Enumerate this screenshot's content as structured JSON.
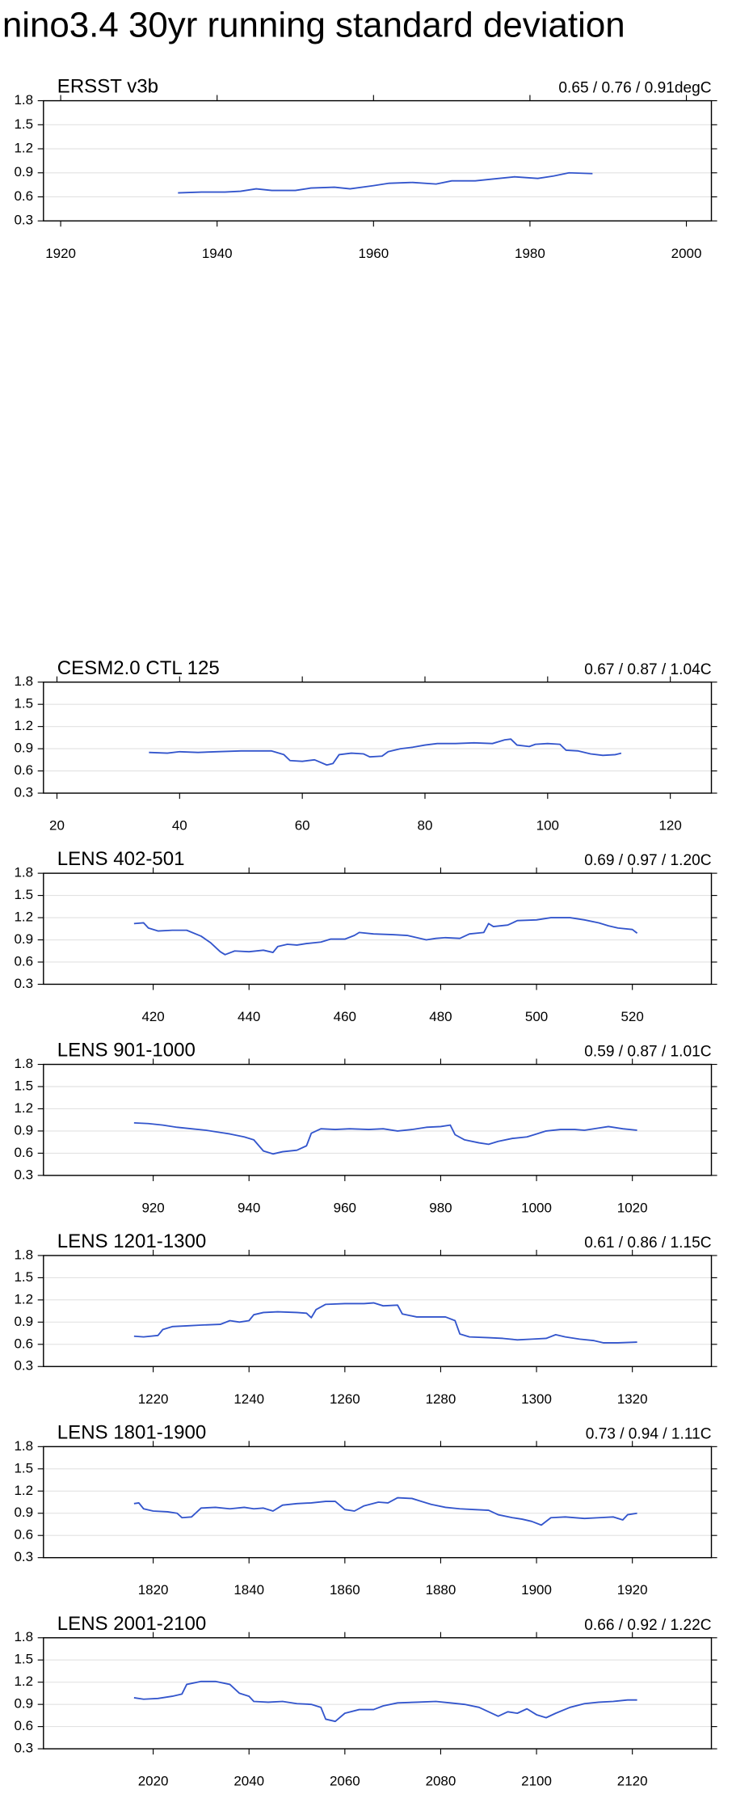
{
  "title": "nino3.4 30yr running standard deviation",
  "chart_data": [
    {
      "type": "line",
      "title": "ERSST v3b",
      "subtitle": "0.65 / 0.76 / 0.91degC",
      "color": "#3355cc",
      "grid": true,
      "x": [
        1935,
        1938,
        1941,
        1943,
        1945,
        1947,
        1950,
        1952,
        1955,
        1957,
        1960,
        1962,
        1965,
        1968,
        1970,
        1973,
        1975,
        1978,
        1981,
        1983,
        1985,
        1988
      ],
      "values": [
        0.65,
        0.66,
        0.66,
        0.67,
        0.7,
        0.68,
        0.68,
        0.71,
        0.72,
        0.7,
        0.74,
        0.77,
        0.78,
        0.76,
        0.8,
        0.8,
        0.82,
        0.85,
        0.83,
        0.86,
        0.9,
        0.89
      ],
      "xlim": [
        1917.8,
        2003.2
      ],
      "xticks": [
        1920,
        1940,
        1960,
        1980,
        2000
      ],
      "ylim": [
        0.3,
        1.8
      ],
      "yticks": [
        0.3,
        0.6,
        0.9,
        1.2,
        1.5,
        1.8
      ]
    },
    {
      "type": "line",
      "title": "CESM2.0 CTL 125",
      "subtitle": "0.67 / 0.87 / 1.04C",
      "color": "#3355cc",
      "grid": true,
      "x": [
        35,
        38,
        40,
        43,
        46,
        50,
        55,
        57,
        58,
        60,
        62,
        64,
        65,
        66,
        68,
        70,
        71,
        73,
        74,
        76,
        78,
        80,
        82,
        85,
        88,
        91,
        93,
        94,
        95,
        97,
        98,
        100,
        102,
        103,
        105,
        107,
        109,
        111,
        112
      ],
      "values": [
        0.85,
        0.84,
        0.86,
        0.85,
        0.86,
        0.87,
        0.87,
        0.82,
        0.74,
        0.73,
        0.75,
        0.68,
        0.7,
        0.82,
        0.84,
        0.83,
        0.79,
        0.8,
        0.86,
        0.9,
        0.92,
        0.95,
        0.97,
        0.97,
        0.98,
        0.97,
        1.02,
        1.03,
        0.95,
        0.93,
        0.96,
        0.97,
        0.96,
        0.88,
        0.87,
        0.83,
        0.81,
        0.82,
        0.84
      ],
      "xlim": [
        17.8,
        126.7
      ],
      "xticks": [
        20,
        40,
        60,
        80,
        100,
        120
      ],
      "ylim": [
        0.3,
        1.8
      ],
      "yticks": [
        0.3,
        0.6,
        0.9,
        1.2,
        1.5,
        1.8
      ]
    },
    {
      "type": "line",
      "title": "LENS 402-501",
      "subtitle": "0.69 / 0.97 / 1.20C",
      "color": "#3355cc",
      "grid": true,
      "x": [
        416,
        418,
        419,
        421,
        424,
        427,
        430,
        432,
        434,
        435,
        437,
        440,
        443,
        445,
        446,
        448,
        450,
        452,
        455,
        457,
        460,
        462,
        463,
        466,
        470,
        473,
        475,
        477,
        479,
        481,
        484,
        486,
        489,
        490,
        491,
        494,
        496,
        500,
        503,
        507,
        510,
        513,
        515,
        517,
        520,
        521
      ],
      "values": [
        1.12,
        1.13,
        1.06,
        1.02,
        1.03,
        1.03,
        0.95,
        0.86,
        0.74,
        0.7,
        0.75,
        0.74,
        0.76,
        0.73,
        0.81,
        0.84,
        0.83,
        0.85,
        0.87,
        0.91,
        0.91,
        0.96,
        1.0,
        0.98,
        0.97,
        0.96,
        0.93,
        0.9,
        0.92,
        0.93,
        0.92,
        0.98,
        1.0,
        1.12,
        1.08,
        1.1,
        1.16,
        1.17,
        1.2,
        1.2,
        1.17,
        1.13,
        1.09,
        1.06,
        1.04,
        0.99
      ],
      "xlim": [
        397.1,
        536.5
      ],
      "xticks": [
        420,
        440,
        460,
        480,
        500,
        520
      ],
      "ylim": [
        0.3,
        1.8
      ],
      "yticks": [
        0.3,
        0.6,
        0.9,
        1.2,
        1.5,
        1.8
      ]
    },
    {
      "type": "line",
      "title": "LENS 901-1000",
      "subtitle": "0.59 / 0.87 / 1.01C",
      "color": "#3355cc",
      "grid": true,
      "x": [
        916,
        919,
        922,
        925,
        928,
        931,
        934,
        936,
        939,
        941,
        943,
        945,
        947,
        950,
        952,
        953,
        955,
        958,
        961,
        965,
        968,
        971,
        974,
        977,
        980,
        982,
        983,
        985,
        988,
        990,
        992,
        995,
        998,
        1000,
        1002,
        1005,
        1008,
        1010,
        1013,
        1015,
        1018,
        1021
      ],
      "values": [
        1.01,
        1.0,
        0.98,
        0.95,
        0.93,
        0.91,
        0.88,
        0.86,
        0.82,
        0.78,
        0.63,
        0.59,
        0.62,
        0.64,
        0.7,
        0.87,
        0.93,
        0.92,
        0.93,
        0.92,
        0.93,
        0.9,
        0.92,
        0.95,
        0.96,
        0.98,
        0.85,
        0.78,
        0.74,
        0.72,
        0.76,
        0.8,
        0.82,
        0.86,
        0.9,
        0.92,
        0.92,
        0.91,
        0.94,
        0.96,
        0.93,
        0.91
      ],
      "xlim": [
        897.1,
        1036.5
      ],
      "xticks": [
        920,
        940,
        960,
        980,
        1000,
        1020
      ],
      "ylim": [
        0.3,
        1.8
      ],
      "yticks": [
        0.3,
        0.6,
        0.9,
        1.2,
        1.5,
        1.8
      ]
    },
    {
      "type": "line",
      "title": "LENS 1201-1300",
      "subtitle": "0.61 / 0.86 / 1.15C",
      "color": "#3355cc",
      "grid": true,
      "x": [
        1216,
        1218,
        1221,
        1222,
        1224,
        1227,
        1230,
        1234,
        1236,
        1238,
        1240,
        1241,
        1243,
        1246,
        1250,
        1252,
        1253,
        1254,
        1256,
        1260,
        1264,
        1266,
        1268,
        1271,
        1272,
        1275,
        1278,
        1281,
        1283,
        1284,
        1286,
        1290,
        1293,
        1296,
        1299,
        1302,
        1304,
        1306,
        1309,
        1312,
        1314,
        1317,
        1321
      ],
      "values": [
        0.71,
        0.7,
        0.72,
        0.8,
        0.84,
        0.85,
        0.86,
        0.87,
        0.92,
        0.9,
        0.92,
        1.0,
        1.03,
        1.04,
        1.03,
        1.02,
        0.96,
        1.07,
        1.14,
        1.15,
        1.15,
        1.16,
        1.12,
        1.13,
        1.01,
        0.97,
        0.97,
        0.97,
        0.92,
        0.74,
        0.7,
        0.69,
        0.68,
        0.66,
        0.67,
        0.68,
        0.73,
        0.7,
        0.67,
        0.65,
        0.62,
        0.62,
        0.63
      ],
      "xlim": [
        1197.1,
        1336.5
      ],
      "xticks": [
        1220,
        1240,
        1260,
        1280,
        1300,
        1320
      ],
      "ylim": [
        0.3,
        1.8
      ],
      "yticks": [
        0.3,
        0.6,
        0.9,
        1.2,
        1.5,
        1.8
      ]
    },
    {
      "type": "line",
      "title": "LENS 1801-1900",
      "subtitle": "0.73 / 0.94 / 1.11C",
      "color": "#3355cc",
      "grid": true,
      "x": [
        1816,
        1817,
        1818,
        1820,
        1823,
        1825,
        1826,
        1828,
        1830,
        1833,
        1836,
        1839,
        1841,
        1843,
        1845,
        1847,
        1850,
        1853,
        1856,
        1858,
        1860,
        1862,
        1864,
        1867,
        1869,
        1871,
        1874,
        1876,
        1878,
        1881,
        1884,
        1887,
        1890,
        1892,
        1895,
        1897,
        1899,
        1901,
        1903,
        1906,
        1910,
        1913,
        1916,
        1918,
        1919,
        1921
      ],
      "values": [
        1.03,
        1.04,
        0.96,
        0.93,
        0.92,
        0.9,
        0.84,
        0.85,
        0.97,
        0.98,
        0.96,
        0.98,
        0.96,
        0.97,
        0.93,
        1.01,
        1.03,
        1.04,
        1.06,
        1.06,
        0.95,
        0.93,
        1.0,
        1.05,
        1.04,
        1.11,
        1.1,
        1.06,
        1.02,
        0.98,
        0.96,
        0.95,
        0.94,
        0.88,
        0.84,
        0.82,
        0.79,
        0.74,
        0.84,
        0.85,
        0.83,
        0.84,
        0.85,
        0.81,
        0.88,
        0.9
      ],
      "xlim": [
        1797.1,
        1936.5
      ],
      "xticks": [
        1820,
        1840,
        1860,
        1880,
        1900,
        1920
      ],
      "ylim": [
        0.3,
        1.8
      ],
      "yticks": [
        0.3,
        0.6,
        0.9,
        1.2,
        1.5,
        1.8
      ]
    },
    {
      "type": "line",
      "title": "LENS 2001-2100",
      "subtitle": "0.66 / 0.92 / 1.22C",
      "color": "#3355cc",
      "grid": true,
      "x": [
        2016,
        2018,
        2021,
        2024,
        2026,
        2027,
        2030,
        2033,
        2036,
        2038,
        2040,
        2041,
        2044,
        2047,
        2050,
        2053,
        2055,
        2056,
        2058,
        2060,
        2063,
        2066,
        2068,
        2071,
        2075,
        2079,
        2082,
        2085,
        2088,
        2090,
        2092,
        2094,
        2096,
        2098,
        2100,
        2102,
        2104,
        2107,
        2110,
        2113,
        2116,
        2119,
        2121
      ],
      "values": [
        0.99,
        0.97,
        0.98,
        1.01,
        1.04,
        1.17,
        1.21,
        1.21,
        1.17,
        1.05,
        1.01,
        0.94,
        0.93,
        0.94,
        0.91,
        0.9,
        0.86,
        0.7,
        0.67,
        0.78,
        0.83,
        0.83,
        0.88,
        0.92,
        0.93,
        0.94,
        0.92,
        0.9,
        0.86,
        0.8,
        0.74,
        0.8,
        0.78,
        0.84,
        0.76,
        0.72,
        0.78,
        0.86,
        0.91,
        0.93,
        0.94,
        0.96,
        0.96
      ],
      "xlim": [
        1997.1,
        2136.5
      ],
      "xticks": [
        2020,
        2040,
        2060,
        2080,
        2100,
        2120
      ],
      "ylim": [
        0.3,
        1.8
      ],
      "yticks": [
        0.3,
        0.6,
        0.9,
        1.2,
        1.5,
        1.8
      ]
    }
  ]
}
